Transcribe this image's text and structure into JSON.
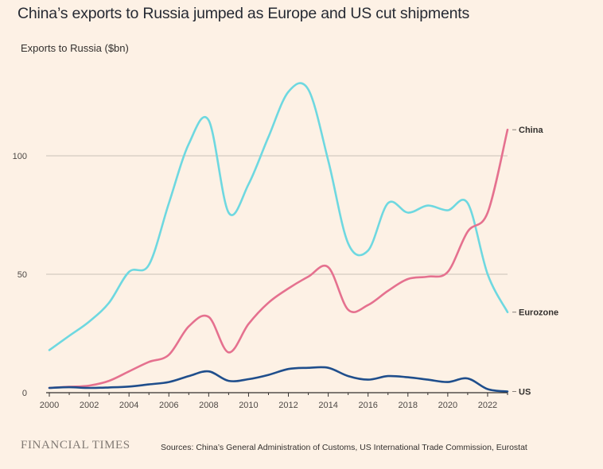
{
  "header": {
    "title": "China’s exports to Russia jumped as Europe and US cut shipments",
    "subtitle": "Exports to Russia ($bn)"
  },
  "footer": {
    "brand": "FINANCIAL TIMES",
    "source": "Sources: China’s General Administration of Customs, US International Trade Commission, Eurostat"
  },
  "colors": {
    "background": "#fdf1e5",
    "grid": "#c9c1b8",
    "axis": "#33302e",
    "eurozone": "#6ed8e0",
    "china": "#e5718f",
    "us": "#1f4e8c"
  },
  "chart_data": {
    "type": "line",
    "title": "China’s exports to Russia jumped as Europe and US cut shipments",
    "ylabel": "Exports to Russia ($bn)",
    "xlabel": "",
    "xlim": [
      2000,
      2023
    ],
    "ylim": [
      0,
      130
    ],
    "y_ticks": [
      0,
      50,
      100
    ],
    "y_tick_labels": [
      "0",
      "50",
      "100"
    ],
    "x_ticks": [
      2000,
      2002,
      2004,
      2006,
      2008,
      2010,
      2012,
      2014,
      2016,
      2018,
      2020,
      2022
    ],
    "x_tick_labels": [
      "2000",
      "2002",
      "2004",
      "2006",
      "2008",
      "2010",
      "2012",
      "2014",
      "2016",
      "2018",
      "2020",
      "2022"
    ],
    "grid": true,
    "x": [
      2000,
      2001,
      2002,
      2003,
      2004,
      2005,
      2006,
      2007,
      2008,
      2009,
      2010,
      2011,
      2012,
      2013,
      2014,
      2015,
      2016,
      2017,
      2018,
      2019,
      2020,
      2021,
      2022,
      2023
    ],
    "series": [
      {
        "name": "Eurozone",
        "color_key": "eurozone",
        "values": [
          18,
          24,
          30,
          38,
          51,
          54,
          80,
          105,
          115,
          76,
          88,
          108,
          127,
          128,
          98,
          63,
          60,
          80,
          76,
          79,
          77,
          80,
          50,
          34
        ]
      },
      {
        "name": "China",
        "color_key": "china",
        "values": [
          2,
          2.5,
          3,
          5,
          9,
          13,
          16,
          28,
          32,
          17,
          29,
          38,
          44,
          49,
          53,
          35,
          37,
          43,
          48,
          49,
          51,
          68,
          76,
          111
        ]
      },
      {
        "name": "US",
        "color_key": "us",
        "values": [
          2,
          2.3,
          2,
          2.2,
          2.6,
          3.5,
          4.5,
          7,
          9,
          5,
          5.7,
          7.5,
          10,
          10.5,
          10.5,
          7,
          5.5,
          7,
          6.5,
          5.5,
          4.5,
          6,
          1.5,
          0.5
        ]
      }
    ]
  }
}
